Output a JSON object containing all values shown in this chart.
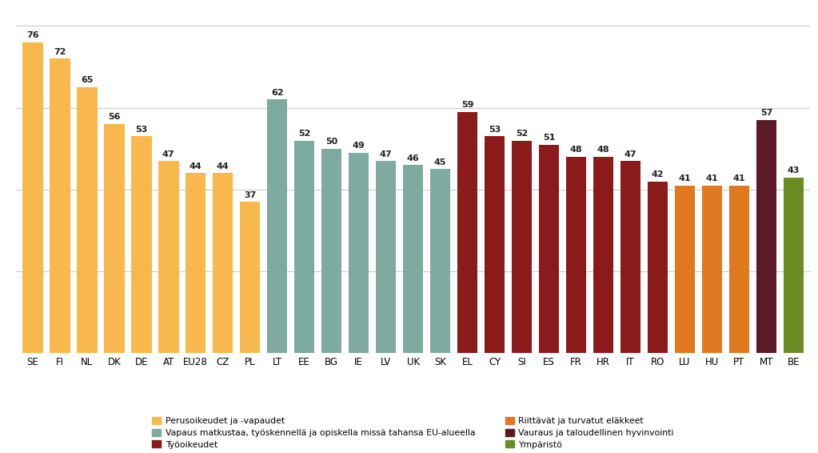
{
  "categories": [
    "SE",
    "FI",
    "NL",
    "DK",
    "DE",
    "AT",
    "EU28",
    "CZ",
    "PL",
    "LT",
    "EE",
    "BG",
    "IE",
    "LV",
    "UK",
    "SK",
    "EL",
    "CY",
    "SI",
    "ES",
    "FR",
    "HR",
    "IT",
    "RO",
    "LU",
    "HU",
    "PT",
    "MT",
    "BE"
  ],
  "values": [
    76,
    72,
    65,
    56,
    53,
    47,
    44,
    44,
    37,
    62,
    52,
    50,
    49,
    47,
    46,
    45,
    59,
    53,
    52,
    51,
    48,
    48,
    47,
    42,
    41,
    41,
    41,
    57,
    43
  ],
  "colors": [
    "#F8B84E",
    "#F8B84E",
    "#F8B84E",
    "#F8B84E",
    "#F8B84E",
    "#F8B84E",
    "#F8B84E",
    "#F8B84E",
    "#F8B84E",
    "#7EAAA0",
    "#7EAAA0",
    "#7EAAA0",
    "#7EAAA0",
    "#7EAAA0",
    "#7EAAA0",
    "#7EAAA0",
    "#8B1A1A",
    "#8B1A1A",
    "#8B1A1A",
    "#8B1A1A",
    "#8B1A1A",
    "#8B1A1A",
    "#8B1A1A",
    "#8B1A1A",
    "#E07820",
    "#E07820",
    "#E07820",
    "#5B1A2A",
    "#6B8C23"
  ],
  "legend_items": [
    {
      "label": "Perusoikeudet ja -vapaudet",
      "color": "#F8B84E"
    },
    {
      "label": "Vapaus matkustaa, työskennellä ja opiskella missä tahansa EU-alueella",
      "color": "#7EAAA0"
    },
    {
      "label": "Työoikeudet",
      "color": "#8B1A1A"
    },
    {
      "label": "Riittävät ja turvatut eläkkeet",
      "color": "#E07820"
    },
    {
      "label": "Vauraus ja taloudellinen hyvinvointi",
      "color": "#5B1A2A"
    },
    {
      "label": "Ympäristö",
      "color": "#6B8C23"
    }
  ],
  "ylim": [
    0,
    83
  ],
  "grid_color": "#CCCCCC",
  "value_fontsize": 8.0,
  "label_fontsize": 8.5,
  "grid_lines": [
    20,
    40,
    60,
    80
  ]
}
